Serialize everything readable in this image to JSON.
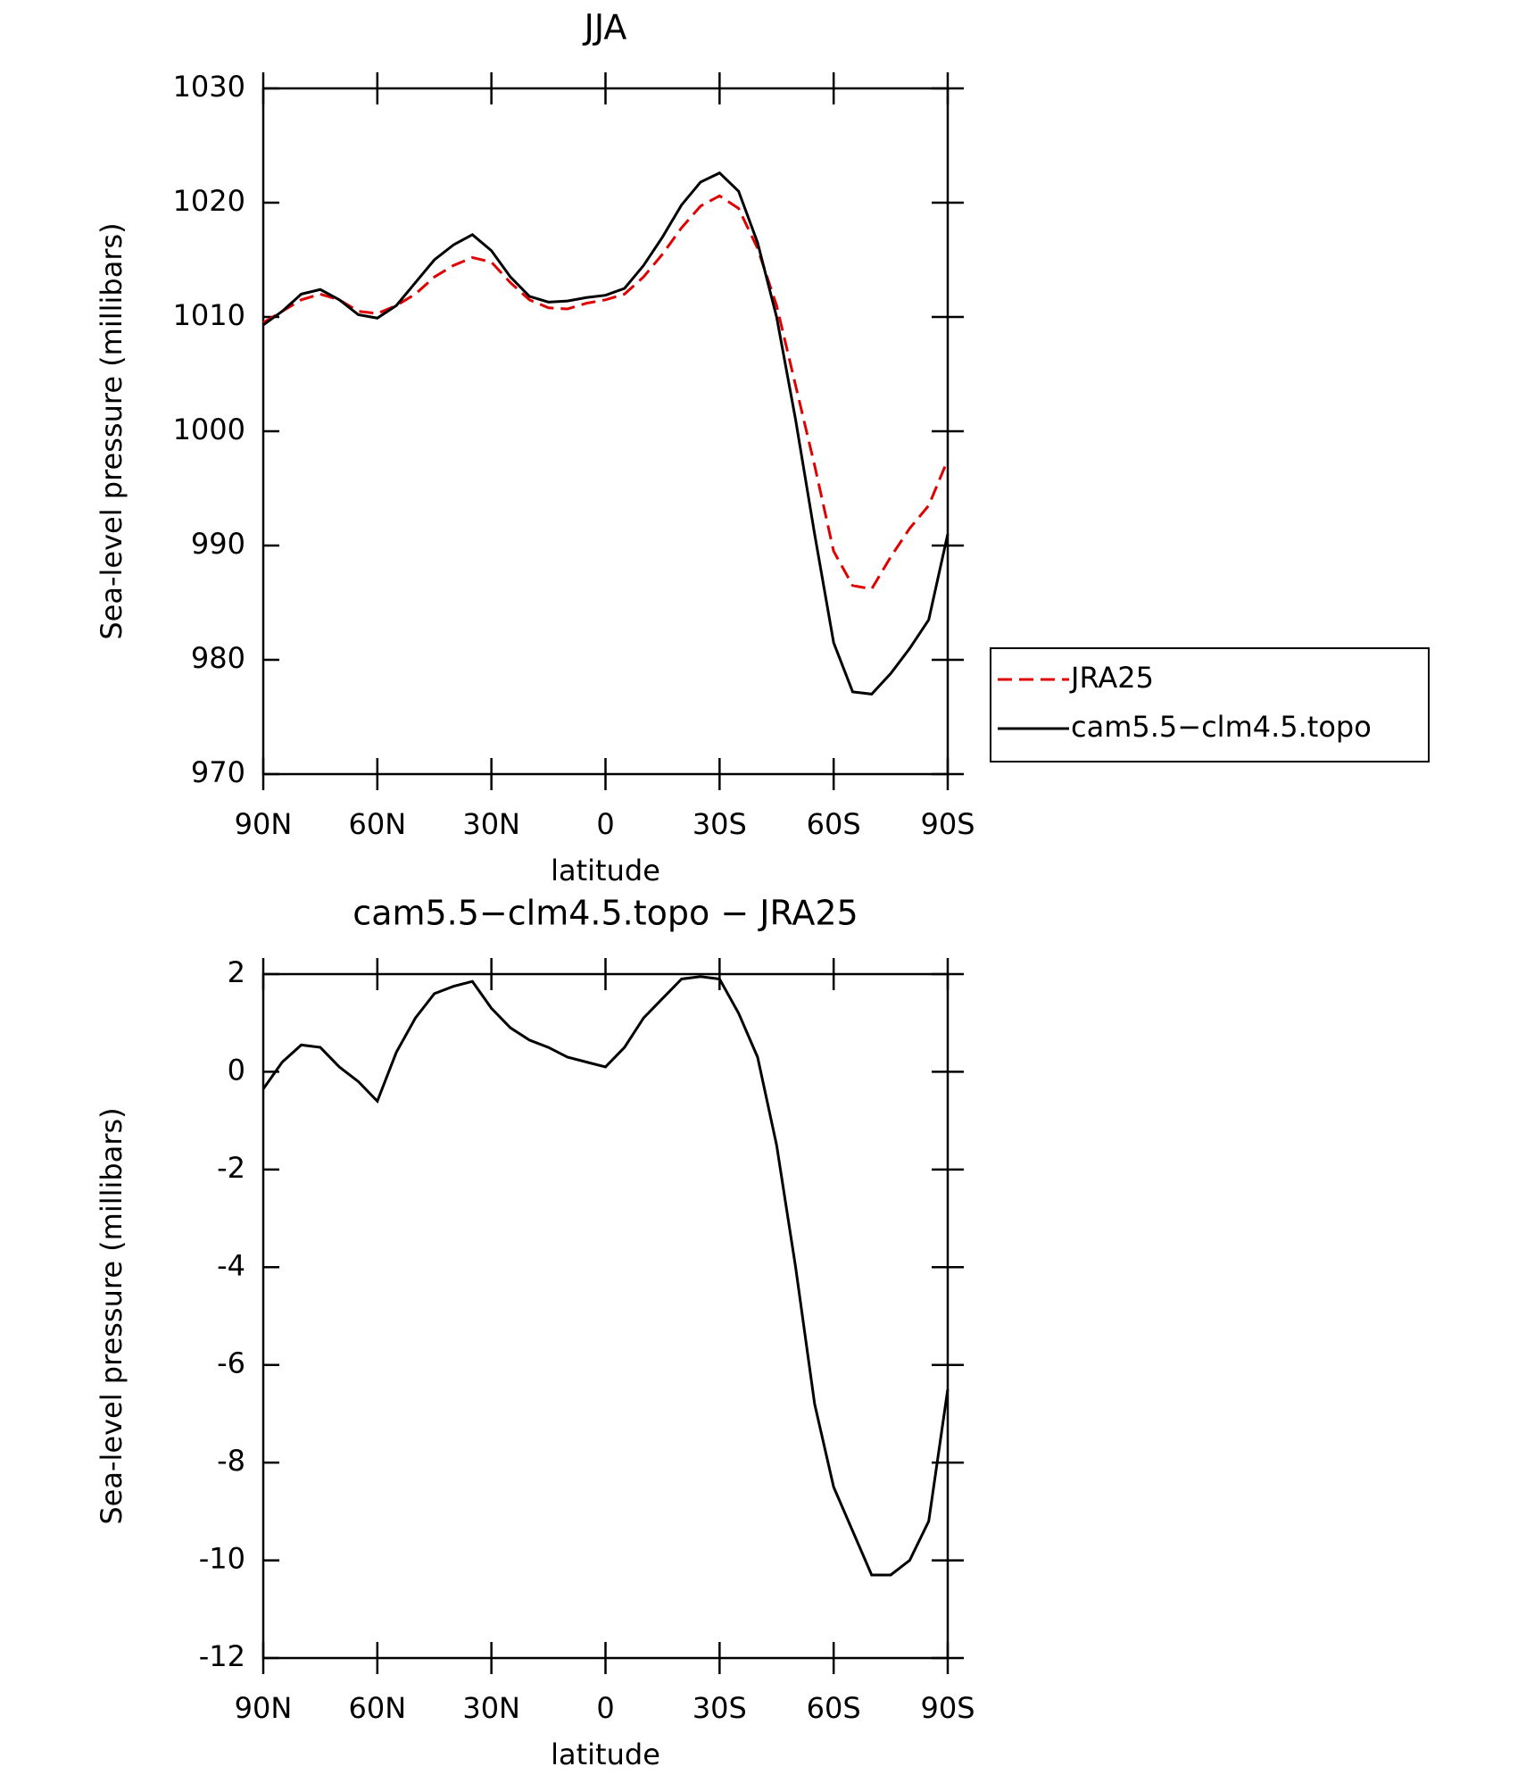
{
  "chart_data": [
    {
      "type": "line",
      "title": "JJA",
      "xlabel": "latitude",
      "ylabel": "Sea-level pressure (millibars)",
      "x": [
        90,
        85,
        80,
        75,
        70,
        65,
        60,
        55,
        50,
        45,
        40,
        35,
        30,
        25,
        20,
        15,
        10,
        5,
        0,
        -5,
        -10,
        -15,
        -20,
        -25,
        -30,
        -35,
        -40,
        -45,
        -50,
        -55,
        -60,
        -65,
        -70,
        -75,
        -80,
        -85,
        -90
      ],
      "series": [
        {
          "name": "JRA25",
          "color": "#e00000",
          "linestyle": "dashed",
          "values": [
            1009.5,
            1010.5,
            1011.5,
            1012,
            1011.5,
            1010.5,
            1010.3,
            1011,
            1012,
            1013.5,
            1014.5,
            1015.2,
            1014.8,
            1013,
            1011.5,
            1010.8,
            1010.7,
            1011.2,
            1011.5,
            1012,
            1013.5,
            1015.5,
            1017.8,
            1019.7,
            1020.6,
            1019.5,
            1016,
            1011,
            1004,
            997,
            989.5,
            986.5,
            986.2,
            989,
            991.5,
            993.5,
            997.5
          ]
        },
        {
          "name": "cam5.5−clm4.5.topo",
          "color": "#000000",
          "linestyle": "solid",
          "values": [
            1009.3,
            1010.5,
            1012,
            1012.4,
            1011.5,
            1010.2,
            1009.9,
            1011,
            1013,
            1015,
            1016.3,
            1017.2,
            1015.8,
            1013.5,
            1011.8,
            1011.3,
            1011.4,
            1011.7,
            1011.9,
            1012.5,
            1014.5,
            1017,
            1019.8,
            1021.8,
            1022.6,
            1021,
            1016.5,
            1010,
            1001,
            991,
            981.5,
            977.2,
            977,
            978.8,
            981,
            983.5,
            991
          ]
        }
      ],
      "xlim": [
        90,
        -90
      ],
      "xticks": [
        {
          "value": 90,
          "label": "90N"
        },
        {
          "value": 60,
          "label": "60N"
        },
        {
          "value": 30,
          "label": "30N"
        },
        0,
        {
          "value": -30,
          "label": "30S"
        },
        {
          "value": -60,
          "label": "60S"
        },
        {
          "value": -90,
          "label": "90S"
        }
      ],
      "ylim": [
        970,
        1030
      ],
      "yticks": [
        970,
        980,
        990,
        1000,
        1010,
        1020,
        1030
      ],
      "legend": "right"
    },
    {
      "type": "line",
      "title": "cam5.5−clm4.5.topo − JRA25",
      "xlabel": "latitude",
      "ylabel": "Sea-level pressure (millibars)",
      "x": [
        90,
        85,
        80,
        75,
        70,
        65,
        60,
        55,
        50,
        45,
        40,
        35,
        30,
        25,
        20,
        15,
        10,
        5,
        0,
        -5,
        -10,
        -15,
        -20,
        -25,
        -30,
        -35,
        -40,
        -45,
        -50,
        -55,
        -60,
        -65,
        -70,
        -75,
        -80,
        -85,
        -90
      ],
      "series": [
        {
          "color": "#000000",
          "linestyle": "solid",
          "values": [
            -0.35,
            0.2,
            0.55,
            0.5,
            0.1,
            -0.2,
            -0.6,
            0.4,
            1.1,
            1.6,
            1.75,
            1.85,
            1.3,
            0.9,
            0.65,
            0.5,
            0.3,
            0.2,
            0.1,
            0.5,
            1.1,
            1.5,
            1.9,
            1.95,
            1.9,
            1.2,
            0.3,
            -1.5,
            -4,
            -6.8,
            -8.5,
            -9.4,
            -10.3,
            -10.3,
            -10,
            -9.2,
            -6.5
          ]
        }
      ],
      "xlim": [
        90,
        -90
      ],
      "xticks": [
        {
          "value": 90,
          "label": "90N"
        },
        {
          "value": 60,
          "label": "60N"
        },
        {
          "value": 30,
          "label": "30N"
        },
        0,
        {
          "value": -30,
          "label": "30S"
        },
        {
          "value": -60,
          "label": "60S"
        },
        {
          "value": -90,
          "label": "90S"
        }
      ],
      "ylim": [
        -12,
        2
      ],
      "yticks": [
        -12,
        -10,
        -8,
        -6,
        -4,
        -2,
        0,
        2
      ]
    }
  ]
}
